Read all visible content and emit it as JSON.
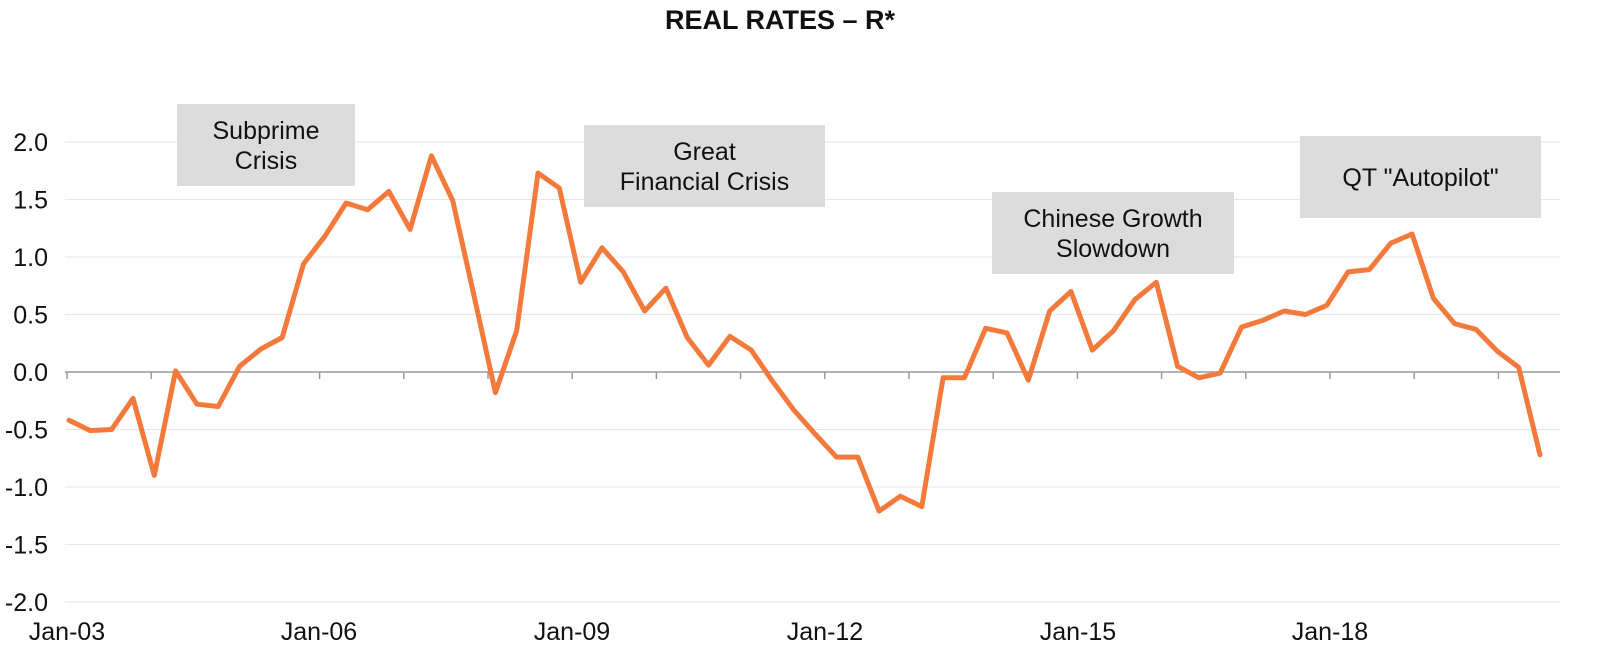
{
  "chart_data": {
    "type": "line",
    "title": "REAL RATES – R*",
    "xlabel": "",
    "ylabel": "",
    "ylim": [
      -2.0,
      2.0
    ],
    "y_ticks": [
      "2.0",
      "1.5",
      "1.0",
      "0.5",
      "0.0",
      "-0.5",
      "-1.0",
      "-1.5",
      "-2.0"
    ],
    "x_tick_labels": [
      "Jan-03",
      "Jan-06",
      "Jan-09",
      "Jan-12",
      "Jan-15",
      "Jan-18"
    ],
    "grid": true,
    "line_color": "#f47a3c",
    "series": [
      {
        "x": [
          "2003-01",
          "2003-04",
          "2003-07",
          "2003-10",
          "2004-01",
          "2004-04",
          "2004-07",
          "2004-10",
          "2005-01",
          "2005-04",
          "2005-07",
          "2005-10",
          "2006-01",
          "2006-04",
          "2006-07",
          "2006-10",
          "2007-01",
          "2007-04",
          "2007-07",
          "2007-10",
          "2008-01",
          "2008-04",
          "2008-07",
          "2008-10",
          "2009-01",
          "2009-04",
          "2009-07",
          "2009-10",
          "2010-01",
          "2010-04",
          "2010-07",
          "2010-10",
          "2011-01",
          "2011-04",
          "2011-07",
          "2011-10",
          "2012-01",
          "2012-04",
          "2012-07",
          "2012-10",
          "2013-01",
          "2013-04",
          "2013-07",
          "2013-10",
          "2014-01",
          "2014-04",
          "2014-07",
          "2014-10",
          "2015-01",
          "2015-04",
          "2015-07",
          "2015-10",
          "2016-01",
          "2016-04",
          "2016-07",
          "2016-10",
          "2017-01",
          "2017-04",
          "2017-07",
          "2017-10",
          "2018-01",
          "2018-04",
          "2018-07",
          "2018-10",
          "2019-01",
          "2019-04",
          "2019-07",
          "2019-10",
          "2020-01",
          "2020-04"
        ],
        "values": [
          -0.42,
          -0.51,
          -0.5,
          -0.23,
          -0.9,
          0.01,
          -0.28,
          -0.3,
          0.05,
          0.2,
          0.3,
          0.94,
          1.18,
          1.47,
          1.41,
          1.57,
          1.24,
          1.88,
          1.49,
          0.66,
          -0.18,
          0.36,
          1.73,
          1.6,
          0.78,
          1.08,
          0.87,
          0.53,
          0.73,
          0.3,
          0.06,
          0.31,
          0.19,
          -0.08,
          -0.33,
          -0.54,
          -0.74,
          -0.74,
          -1.21,
          -1.08,
          -1.17,
          -0.05,
          -0.05,
          0.38,
          0.34,
          -0.07,
          0.53,
          0.7,
          0.19,
          0.36,
          0.63,
          0.78,
          0.05,
          -0.05,
          -0.01,
          0.39,
          0.45,
          0.53,
          0.5,
          0.58,
          0.87,
          0.89,
          1.12,
          1.2,
          0.64,
          0.42,
          0.37,
          0.18,
          0.04,
          -0.72
        ]
      }
    ],
    "annotations": [
      {
        "lines": [
          "Subprime",
          "Crisis"
        ]
      },
      {
        "lines": [
          "Great",
          "Financial Crisis"
        ]
      },
      {
        "lines": [
          "Chinese Growth",
          "Slowdown"
        ]
      },
      {
        "lines": [
          "QT \"Autopilot\""
        ]
      }
    ]
  }
}
